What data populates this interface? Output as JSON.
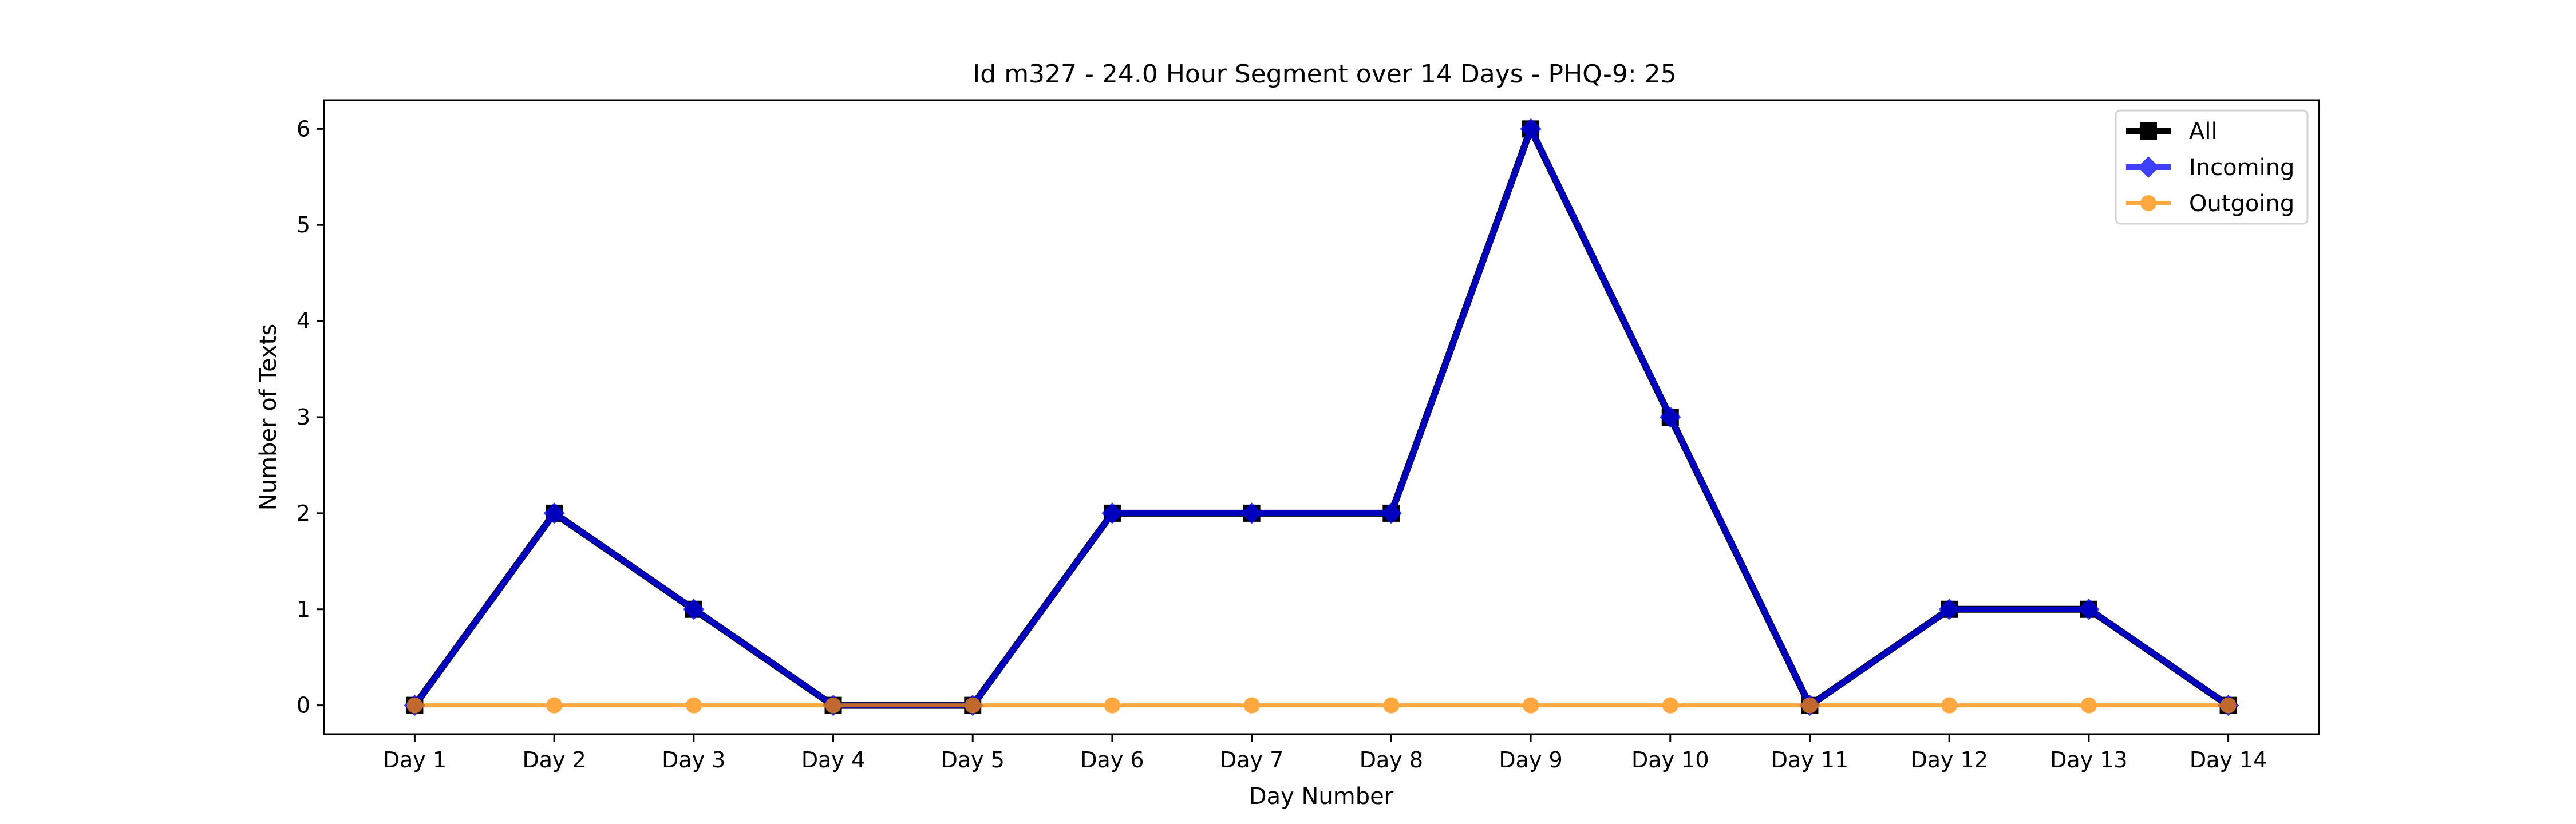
{
  "chart_data": {
    "type": "line",
    "title": "Id m327 - 24.0 Hour Segment over 14 Days - PHQ-9: 25",
    "xlabel": "Day Number",
    "ylabel": "Number of Texts",
    "categories": [
      "Day 1",
      "Day 2",
      "Day 3",
      "Day 4",
      "Day 5",
      "Day 6",
      "Day 7",
      "Day 8",
      "Day 9",
      "Day 10",
      "Day 11",
      "Day 12",
      "Day 13",
      "Day 14"
    ],
    "yticks": [
      0,
      1,
      2,
      3,
      4,
      5,
      6
    ],
    "ylim": [
      -0.3,
      6.3
    ],
    "grid": false,
    "legend_position": "top-right",
    "series": [
      {
        "name": "All",
        "color": "#000000",
        "marker": "square",
        "values": [
          0,
          2,
          1,
          0,
          0,
          2,
          2,
          2,
          6,
          3,
          0,
          1,
          1,
          0
        ]
      },
      {
        "name": "Incoming",
        "color": "#0000ff",
        "marker": "diamond",
        "values": [
          0,
          2,
          1,
          0,
          0,
          2,
          2,
          2,
          6,
          3,
          0,
          1,
          1,
          0
        ]
      },
      {
        "name": "Outgoing",
        "color": "#ff8c00",
        "marker": "circle",
        "values": [
          0,
          0,
          0,
          0,
          0,
          0,
          0,
          0,
          0,
          0,
          0,
          0,
          0,
          0
        ]
      }
    ]
  }
}
